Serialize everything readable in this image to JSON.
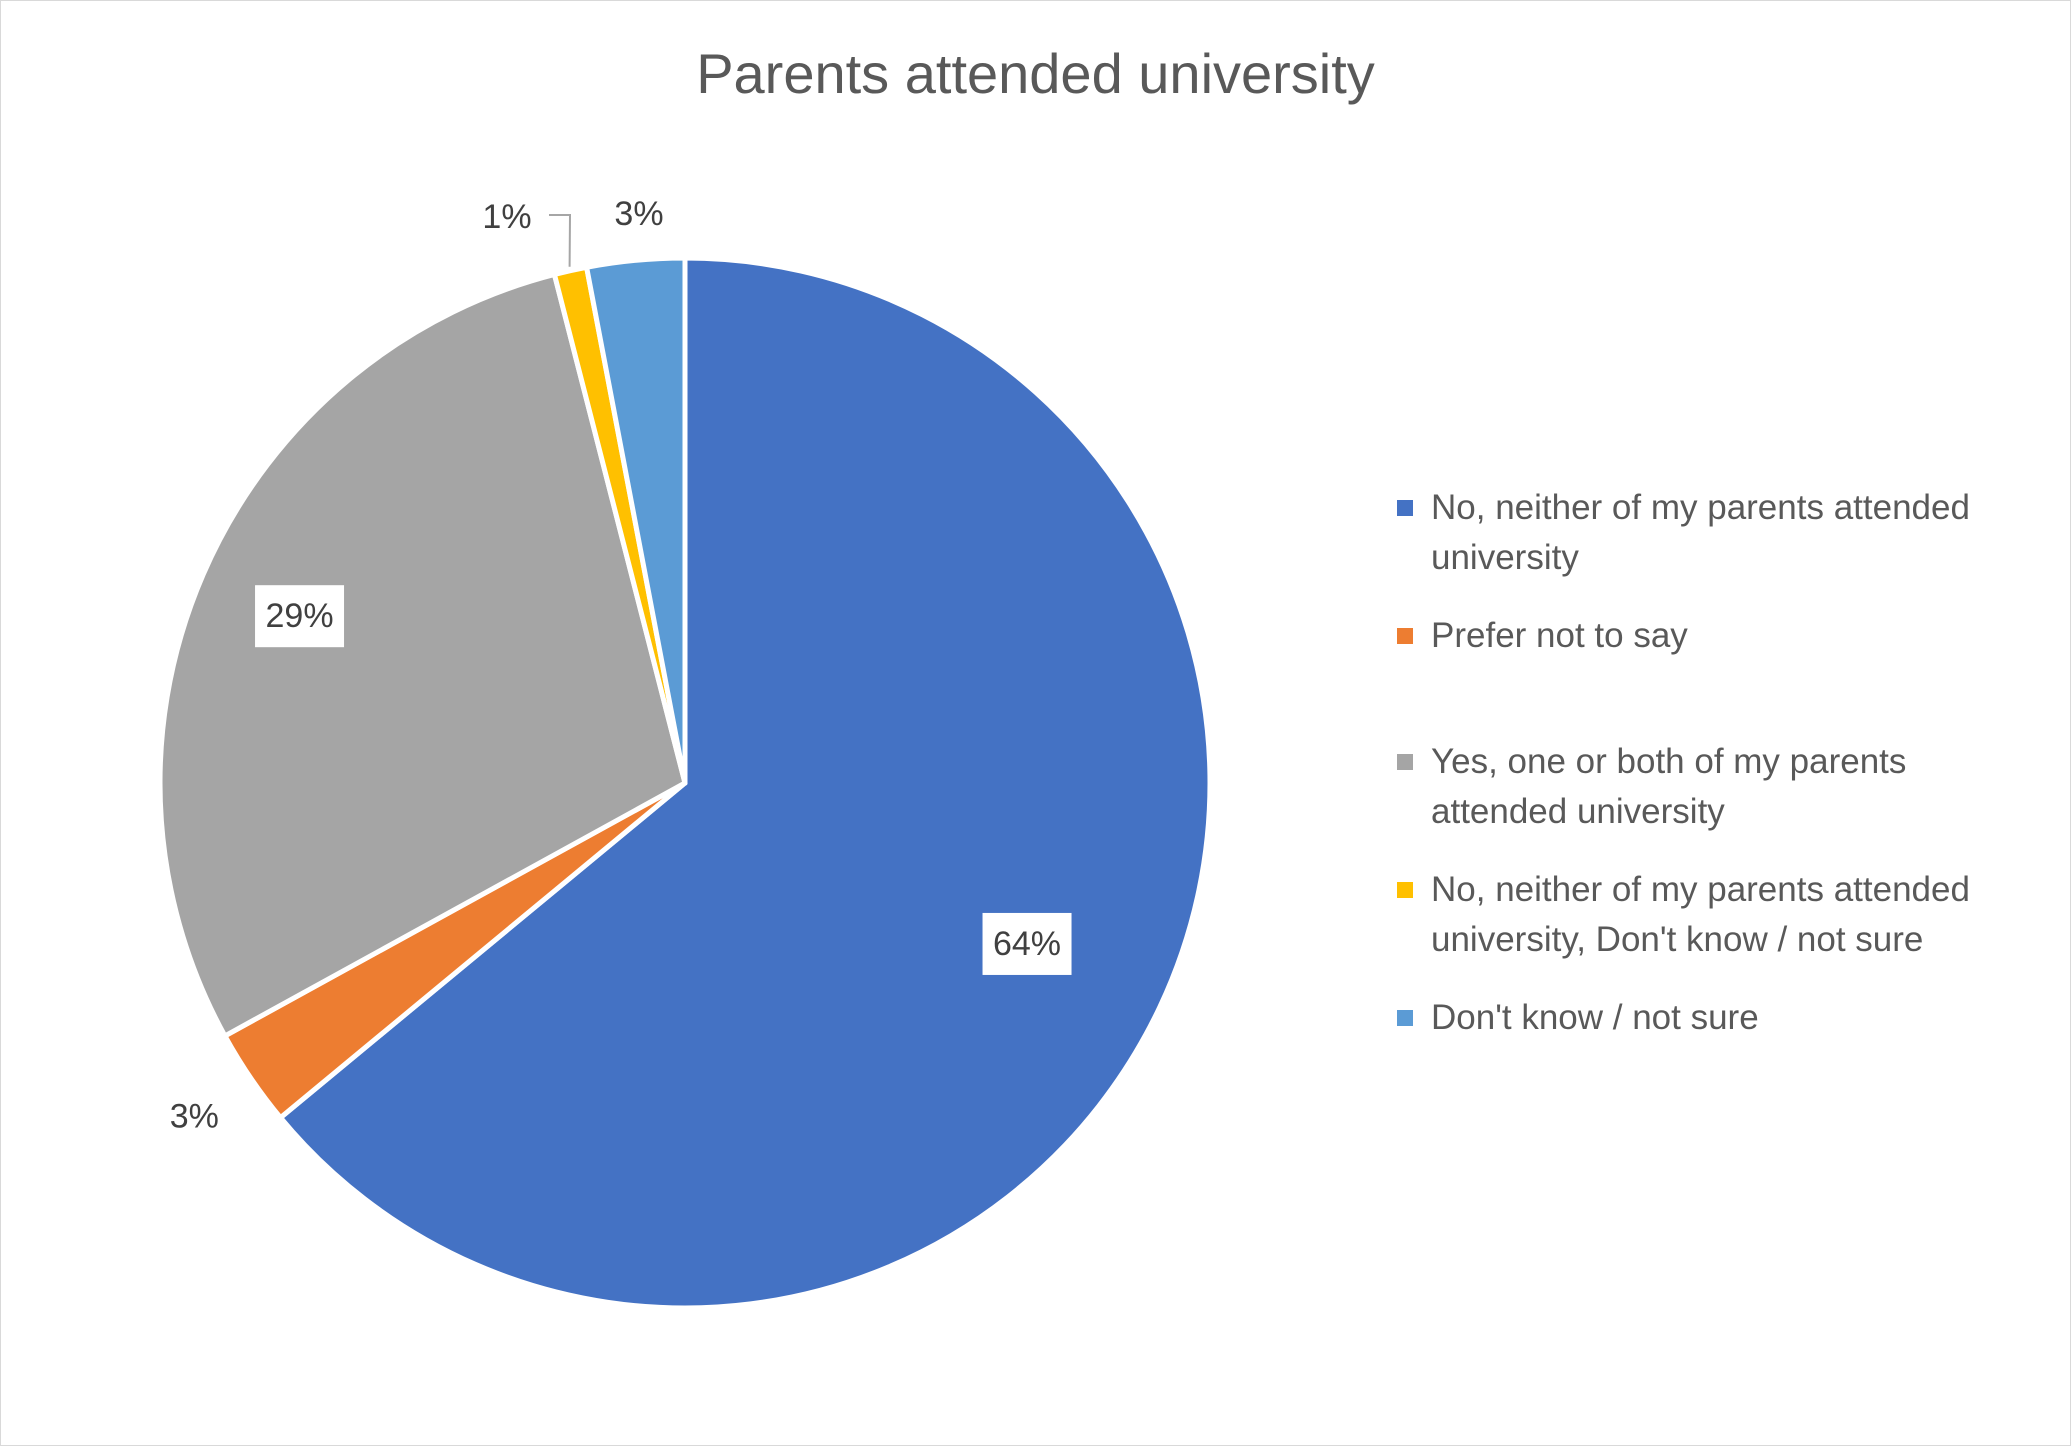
{
  "chart_data": {
    "type": "pie",
    "title": "Parents attended university",
    "slices": [
      {
        "label": "No, neither of my parents attended university",
        "value": 64,
        "value_label": "64%",
        "color": "#4472C4"
      },
      {
        "label": "Prefer not to say",
        "value": 3,
        "value_label": "3%",
        "color": "#ED7D31"
      },
      {
        "label": "Yes, one or both of my parents attended university",
        "value": 29,
        "value_label": "29%",
        "color": "#A5A5A5"
      },
      {
        "label": "No, neither of my parents attended university, Don't know / not sure",
        "value": 1,
        "value_label": "1%",
        "color": "#FFC000"
      },
      {
        "label": "Don't know / not sure",
        "value": 3,
        "value_label": "3%",
        "color": "#5B9BD5"
      }
    ],
    "legend_position": "right"
  }
}
